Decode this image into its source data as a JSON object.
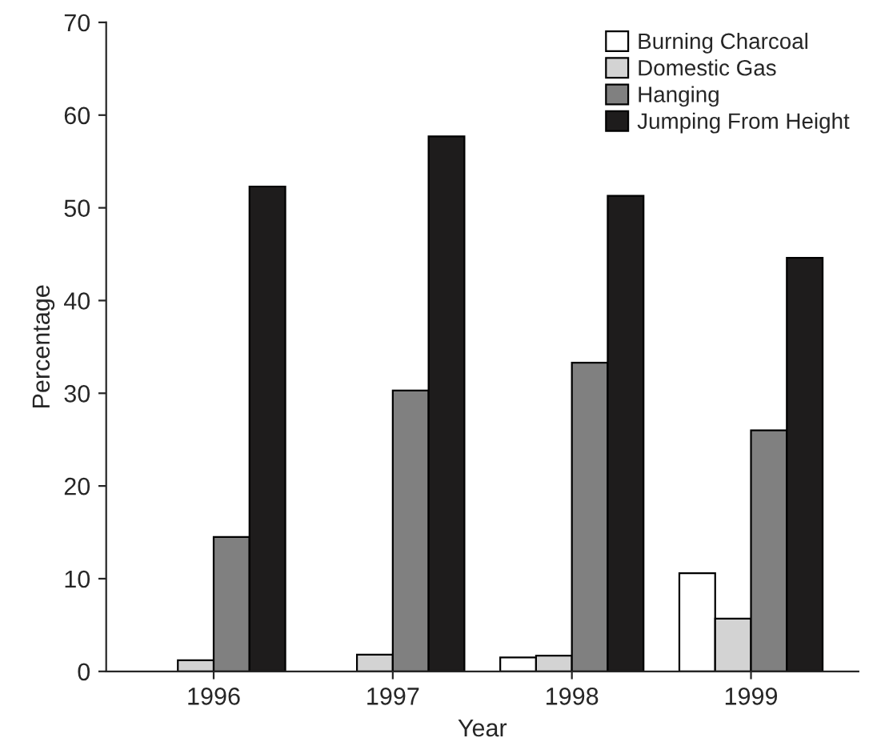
{
  "chart_data": {
    "type": "bar",
    "xlabel": "Year",
    "ylabel": "Percentage",
    "categories": [
      "1996",
      "1997",
      "1998",
      "1999"
    ],
    "series": [
      {
        "name": "Burning Charcoal",
        "color": "#ffffff",
        "values": [
          0,
          0,
          1.5,
          10.6
        ]
      },
      {
        "name": "Domestic Gas",
        "color": "#d3d3d3",
        "values": [
          1.2,
          1.8,
          1.7,
          5.7
        ]
      },
      {
        "name": "Hanging",
        "color": "#808080",
        "values": [
          14.5,
          30.3,
          33.3,
          26
        ]
      },
      {
        "name": "Jumping From Height",
        "color": "#1e1c1c",
        "values": [
          52.3,
          57.7,
          51.3,
          44.6
        ]
      }
    ],
    "ylim": [
      0,
      70
    ],
    "yticks": [
      0,
      10,
      20,
      30,
      40,
      50,
      60,
      70
    ],
    "grid": false,
    "legend": "top right"
  }
}
